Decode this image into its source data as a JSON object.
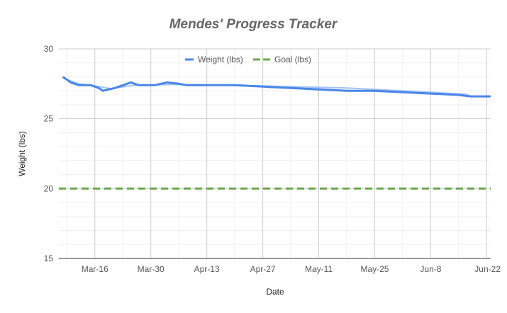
{
  "chart_data": {
    "type": "line",
    "title": "Mendes' Progress Tracker",
    "xlabel": "Date",
    "ylabel": "Weight (lbs)",
    "ylim": [
      15,
      30
    ],
    "yticks": [
      "15",
      "20",
      "25",
      "30"
    ],
    "xlim": [
      "03-07",
      "06-23"
    ],
    "xticks": [
      {
        "date": "03-16",
        "label": "Mar-16"
      },
      {
        "date": "03-30",
        "label": "Mar-30"
      },
      {
        "date": "04-13",
        "label": "Apr-13"
      },
      {
        "date": "04-27",
        "label": "Apr-27"
      },
      {
        "date": "05-11",
        "label": "May-11"
      },
      {
        "date": "05-25",
        "label": "May-25"
      },
      {
        "date": "06-08",
        "label": "Jun-8"
      },
      {
        "date": "06-22",
        "label": "Jun-22"
      }
    ],
    "grid": true,
    "legend_position": "top",
    "series": [
      {
        "name": "Weight (lbs)",
        "color": "#4a86e8",
        "style": "solid",
        "points": [
          {
            "x": "03-08",
            "y": 28.0
          },
          {
            "x": "03-10",
            "y": 27.6
          },
          {
            "x": "03-12",
            "y": 27.4
          },
          {
            "x": "03-15",
            "y": 27.4
          },
          {
            "x": "03-17",
            "y": 27.2
          },
          {
            "x": "03-18",
            "y": 27.0
          },
          {
            "x": "03-21",
            "y": 27.2
          },
          {
            "x": "03-25",
            "y": 27.6
          },
          {
            "x": "03-27",
            "y": 27.4
          },
          {
            "x": "03-31",
            "y": 27.4
          },
          {
            "x": "04-03",
            "y": 27.6
          },
          {
            "x": "04-06",
            "y": 27.5
          },
          {
            "x": "04-08",
            "y": 27.4
          },
          {
            "x": "04-13",
            "y": 27.4
          },
          {
            "x": "04-20",
            "y": 27.4
          },
          {
            "x": "04-27",
            "y": 27.3
          },
          {
            "x": "05-04",
            "y": 27.2
          },
          {
            "x": "05-11",
            "y": 27.1
          },
          {
            "x": "05-18",
            "y": 27.0
          },
          {
            "x": "05-25",
            "y": 27.0
          },
          {
            "x": "06-01",
            "y": 26.9
          },
          {
            "x": "06-08",
            "y": 26.8
          },
          {
            "x": "06-15",
            "y": 26.7
          },
          {
            "x": "06-18",
            "y": 26.6
          },
          {
            "x": "06-23",
            "y": 26.6
          }
        ]
      },
      {
        "name": "Goal (lbs)",
        "color": "#6aa84f",
        "style": "dashed",
        "points": [
          {
            "x": "03-07",
            "y": 20
          },
          {
            "x": "06-23",
            "y": 20
          }
        ]
      }
    ],
    "trendline": {
      "color": "#a4c2f4",
      "points": [
        {
          "x": "03-09",
          "y": 27.8
        },
        {
          "x": "03-12",
          "y": 27.5
        },
        {
          "x": "03-16",
          "y": 27.35
        },
        {
          "x": "03-20",
          "y": 27.15
        },
        {
          "x": "03-26",
          "y": 27.4
        },
        {
          "x": "04-06",
          "y": 27.45
        },
        {
          "x": "04-27",
          "y": 27.35
        },
        {
          "x": "05-18",
          "y": 27.2
        },
        {
          "x": "06-08",
          "y": 26.9
        },
        {
          "x": "06-17",
          "y": 26.75
        },
        {
          "x": "06-18",
          "y": 26.6
        }
      ]
    }
  }
}
